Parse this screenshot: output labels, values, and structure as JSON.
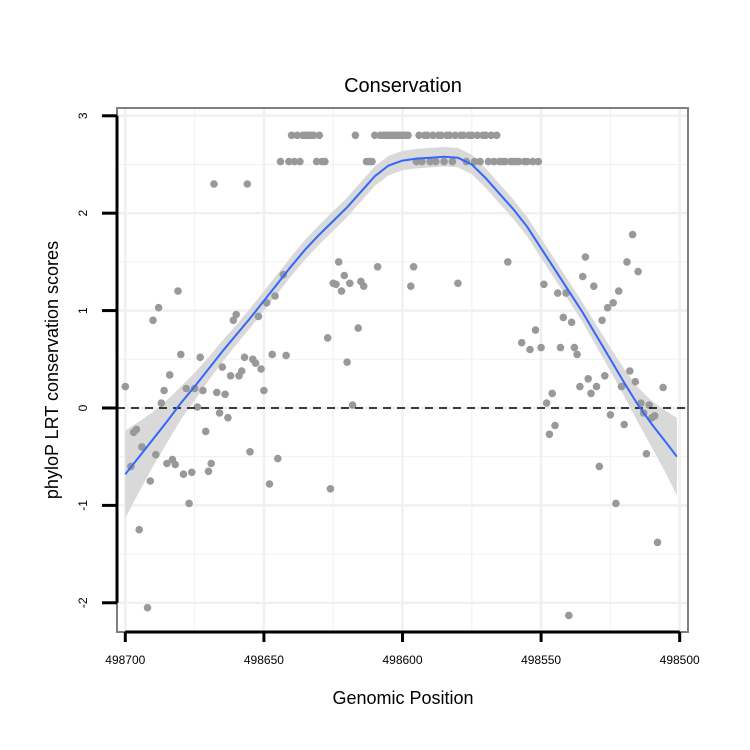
{
  "chart_data": {
    "type": "scatter",
    "title": "Conservation",
    "xlabel": "Genomic Position",
    "ylabel": "phyloP LRT conservation scores",
    "xlim": [
      498703,
      498497
    ],
    "x_reversed": true,
    "ylim": [
      -2.3,
      3.08
    ],
    "x_ticks": [
      498700,
      498650,
      498600,
      498550,
      498500
    ],
    "x_tick_labels": [
      "498700",
      "498650",
      "498600",
      "498550",
      "498500"
    ],
    "y_ticks": [
      -2,
      -1,
      0,
      1,
      2,
      3
    ],
    "y_tick_labels": [
      "-2",
      "-1",
      "0",
      "1",
      "2",
      "3"
    ],
    "grid": true,
    "reference_line": {
      "y": 0,
      "style": "dashed",
      "color": "#000000"
    },
    "colors": {
      "points": "#999999",
      "smooth_line": "#3366ff",
      "ribbon": "#d9d9d9",
      "grid": "#f0f0f0",
      "panel_border": "#7f7f7f"
    },
    "points": [
      {
        "x": 498700,
        "y": 0.22
      },
      {
        "x": 498698,
        "y": -0.6
      },
      {
        "x": 498697,
        "y": -0.25
      },
      {
        "x": 498696,
        "y": -0.22
      },
      {
        "x": 498695,
        "y": -1.25
      },
      {
        "x": 498694,
        "y": -0.4
      },
      {
        "x": 498692,
        "y": -2.05
      },
      {
        "x": 498691,
        "y": -0.75
      },
      {
        "x": 498690,
        "y": 0.9
      },
      {
        "x": 498689,
        "y": -0.48
      },
      {
        "x": 498688,
        "y": 1.03
      },
      {
        "x": 498687,
        "y": 0.05
      },
      {
        "x": 498686,
        "y": 0.18
      },
      {
        "x": 498685,
        "y": -0.57
      },
      {
        "x": 498684,
        "y": 0.34
      },
      {
        "x": 498683,
        "y": -0.53
      },
      {
        "x": 498682,
        "y": -0.58
      },
      {
        "x": 498681,
        "y": 1.2
      },
      {
        "x": 498680,
        "y": 0.55
      },
      {
        "x": 498679,
        "y": -0.68
      },
      {
        "x": 498678,
        "y": 0.2
      },
      {
        "x": 498677,
        "y": -0.98
      },
      {
        "x": 498676,
        "y": -0.66
      },
      {
        "x": 498675,
        "y": 0.2
      },
      {
        "x": 498674,
        "y": 0.01
      },
      {
        "x": 498673,
        "y": 0.52
      },
      {
        "x": 498672,
        "y": 0.18
      },
      {
        "x": 498671,
        "y": -0.24
      },
      {
        "x": 498670,
        "y": -0.65
      },
      {
        "x": 498669,
        "y": -0.57
      },
      {
        "x": 498668,
        "y": 2.3
      },
      {
        "x": 498667,
        "y": 0.16
      },
      {
        "x": 498666,
        "y": -0.05
      },
      {
        "x": 498665,
        "y": 0.42
      },
      {
        "x": 498664,
        "y": 0.14
      },
      {
        "x": 498663,
        "y": -0.1
      },
      {
        "x": 498662,
        "y": 0.33
      },
      {
        "x": 498661,
        "y": 0.9
      },
      {
        "x": 498660,
        "y": 0.96
      },
      {
        "x": 498659,
        "y": 0.33
      },
      {
        "x": 498658,
        "y": 0.38
      },
      {
        "x": 498657,
        "y": 0.52
      },
      {
        "x": 498656,
        "y": 2.3
      },
      {
        "x": 498655,
        "y": -0.45
      },
      {
        "x": 498654,
        "y": 0.5
      },
      {
        "x": 498653,
        "y": 0.46
      },
      {
        "x": 498652,
        "y": 0.94
      },
      {
        "x": 498651,
        "y": 0.4
      },
      {
        "x": 498650,
        "y": 0.18
      },
      {
        "x": 498649,
        "y": 1.08
      },
      {
        "x": 498648,
        "y": -0.78
      },
      {
        "x": 498647,
        "y": 0.55
      },
      {
        "x": 498646,
        "y": 1.15
      },
      {
        "x": 498645,
        "y": -0.52
      },
      {
        "x": 498644,
        "y": 2.53
      },
      {
        "x": 498643,
        "y": 1.37
      },
      {
        "x": 498642,
        "y": 0.54
      },
      {
        "x": 498641,
        "y": 2.53
      },
      {
        "x": 498640,
        "y": 2.8
      },
      {
        "x": 498639,
        "y": 2.53
      },
      {
        "x": 498638,
        "y": 2.8
      },
      {
        "x": 498637,
        "y": 2.53
      },
      {
        "x": 498636,
        "y": 2.8
      },
      {
        "x": 498635,
        "y": 2.8
      },
      {
        "x": 498634,
        "y": 2.8
      },
      {
        "x": 498633,
        "y": 2.8
      },
      {
        "x": 498632,
        "y": 2.8
      },
      {
        "x": 498631,
        "y": 2.53
      },
      {
        "x": 498630,
        "y": 2.8
      },
      {
        "x": 498629,
        "y": 2.53
      },
      {
        "x": 498628,
        "y": 2.53
      },
      {
        "x": 498627,
        "y": 0.72
      },
      {
        "x": 498626,
        "y": -0.83
      },
      {
        "x": 498625,
        "y": 1.28
      },
      {
        "x": 498624,
        "y": 1.27
      },
      {
        "x": 498623,
        "y": 1.5
      },
      {
        "x": 498622,
        "y": 1.2
      },
      {
        "x": 498621,
        "y": 1.36
      },
      {
        "x": 498620,
        "y": 0.47
      },
      {
        "x": 498619,
        "y": 1.28
      },
      {
        "x": 498618,
        "y": 0.03
      },
      {
        "x": 498617,
        "y": 2.8
      },
      {
        "x": 498616,
        "y": 0.82
      },
      {
        "x": 498615,
        "y": 1.3
      },
      {
        "x": 498614,
        "y": 1.25
      },
      {
        "x": 498613,
        "y": 2.53
      },
      {
        "x": 498612,
        "y": 2.53
      },
      {
        "x": 498611,
        "y": 2.53
      },
      {
        "x": 498610,
        "y": 2.8
      },
      {
        "x": 498609,
        "y": 1.45
      },
      {
        "x": 498608,
        "y": 2.8
      },
      {
        "x": 498607,
        "y": 2.8
      },
      {
        "x": 498606,
        "y": 2.8
      },
      {
        "x": 498605,
        "y": 2.8
      },
      {
        "x": 498604,
        "y": 2.8
      },
      {
        "x": 498603,
        "y": 2.8
      },
      {
        "x": 498602,
        "y": 2.8
      },
      {
        "x": 498601,
        "y": 2.8
      },
      {
        "x": 498600,
        "y": 2.8
      },
      {
        "x": 498599,
        "y": 2.8
      },
      {
        "x": 498598,
        "y": 2.8
      },
      {
        "x": 498597,
        "y": 1.25
      },
      {
        "x": 498596,
        "y": 1.45
      },
      {
        "x": 498595,
        "y": 2.53
      },
      {
        "x": 498594,
        "y": 2.8
      },
      {
        "x": 498593,
        "y": 2.53
      },
      {
        "x": 498592,
        "y": 2.8
      },
      {
        "x": 498591,
        "y": 2.8
      },
      {
        "x": 498590,
        "y": 2.53
      },
      {
        "x": 498589,
        "y": 2.8
      },
      {
        "x": 498588,
        "y": 2.53
      },
      {
        "x": 498587,
        "y": 2.8
      },
      {
        "x": 498586,
        "y": 2.8
      },
      {
        "x": 498585,
        "y": 2.53
      },
      {
        "x": 498584,
        "y": 2.8
      },
      {
        "x": 498583,
        "y": 2.8
      },
      {
        "x": 498582,
        "y": 2.53
      },
      {
        "x": 498581,
        "y": 2.8
      },
      {
        "x": 498580,
        "y": 1.28
      },
      {
        "x": 498579,
        "y": 2.8
      },
      {
        "x": 498578,
        "y": 2.8
      },
      {
        "x": 498577,
        "y": 2.53
      },
      {
        "x": 498576,
        "y": 2.8
      },
      {
        "x": 498575,
        "y": 2.8
      },
      {
        "x": 498574,
        "y": 2.53
      },
      {
        "x": 498573,
        "y": 2.8
      },
      {
        "x": 498572,
        "y": 2.53
      },
      {
        "x": 498571,
        "y": 2.8
      },
      {
        "x": 498570,
        "y": 2.8
      },
      {
        "x": 498569,
        "y": 2.53
      },
      {
        "x": 498568,
        "y": 2.8
      },
      {
        "x": 498567,
        "y": 2.53
      },
      {
        "x": 498566,
        "y": 2.8
      },
      {
        "x": 498565,
        "y": 2.53
      },
      {
        "x": 498564,
        "y": 2.53
      },
      {
        "x": 498563,
        "y": 2.53
      },
      {
        "x": 498562,
        "y": 1.5
      },
      {
        "x": 498561,
        "y": 2.53
      },
      {
        "x": 498560,
        "y": 2.53
      },
      {
        "x": 498559,
        "y": 2.53
      },
      {
        "x": 498558,
        "y": 2.53
      },
      {
        "x": 498557,
        "y": 0.67
      },
      {
        "x": 498556,
        "y": 2.53
      },
      {
        "x": 498555,
        "y": 2.53
      },
      {
        "x": 498554,
        "y": 0.6
      },
      {
        "x": 498553,
        "y": 2.53
      },
      {
        "x": 498552,
        "y": 0.8
      },
      {
        "x": 498551,
        "y": 2.53
      },
      {
        "x": 498550,
        "y": 0.62
      },
      {
        "x": 498549,
        "y": 1.27
      },
      {
        "x": 498548,
        "y": 0.05
      },
      {
        "x": 498547,
        "y": -0.27
      },
      {
        "x": 498546,
        "y": 0.15
      },
      {
        "x": 498545,
        "y": -0.18
      },
      {
        "x": 498544,
        "y": 1.18
      },
      {
        "x": 498543,
        "y": 0.62
      },
      {
        "x": 498542,
        "y": 0.93
      },
      {
        "x": 498541,
        "y": 1.18
      },
      {
        "x": 498540,
        "y": -2.13
      },
      {
        "x": 498539,
        "y": 0.88
      },
      {
        "x": 498538,
        "y": 0.62
      },
      {
        "x": 498537,
        "y": 0.55
      },
      {
        "x": 498536,
        "y": 0.22
      },
      {
        "x": 498535,
        "y": 1.35
      },
      {
        "x": 498534,
        "y": 1.55
      },
      {
        "x": 498533,
        "y": 0.3
      },
      {
        "x": 498532,
        "y": 0.15
      },
      {
        "x": 498531,
        "y": 1.25
      },
      {
        "x": 498530,
        "y": 0.22
      },
      {
        "x": 498529,
        "y": -0.6
      },
      {
        "x": 498528,
        "y": 0.9
      },
      {
        "x": 498527,
        "y": 0.33
      },
      {
        "x": 498526,
        "y": 1.03
      },
      {
        "x": 498525,
        "y": -0.07
      },
      {
        "x": 498524,
        "y": 1.08
      },
      {
        "x": 498523,
        "y": -0.98
      },
      {
        "x": 498522,
        "y": 1.2
      },
      {
        "x": 498521,
        "y": 0.22
      },
      {
        "x": 498520,
        "y": -0.17
      },
      {
        "x": 498519,
        "y": 1.5
      },
      {
        "x": 498518,
        "y": 0.38
      },
      {
        "x": 498517,
        "y": 1.78
      },
      {
        "x": 498516,
        "y": 0.27
      },
      {
        "x": 498515,
        "y": 1.4
      },
      {
        "x": 498514,
        "y": 0.05
      },
      {
        "x": 498513,
        "y": -0.05
      },
      {
        "x": 498512,
        "y": -0.47
      },
      {
        "x": 498511,
        "y": 0.03
      },
      {
        "x": 498510,
        "y": -0.1
      },
      {
        "x": 498509,
        "y": -0.08
      },
      {
        "x": 498508,
        "y": -1.38
      },
      {
        "x": 498506,
        "y": 0.21
      }
    ],
    "smooth": {
      "x": [
        498700,
        498695,
        498690,
        498685,
        498680,
        498675,
        498670,
        498665,
        498660,
        498655,
        498650,
        498645,
        498640,
        498635,
        498630,
        498625,
        498620,
        498615,
        498610,
        498605,
        498600,
        498595,
        498590,
        498585,
        498580,
        498575,
        498570,
        498565,
        498560,
        498555,
        498550,
        498545,
        498540,
        498535,
        498530,
        498525,
        498520,
        498515,
        498510,
        498505,
        498501
      ],
      "y": [
        -0.68,
        -0.5,
        -0.32,
        -0.14,
        0.05,
        0.22,
        0.4,
        0.58,
        0.75,
        0.92,
        1.1,
        1.28,
        1.46,
        1.63,
        1.78,
        1.92,
        2.06,
        2.22,
        2.38,
        2.49,
        2.54,
        2.56,
        2.57,
        2.58,
        2.57,
        2.5,
        2.36,
        2.2,
        2.04,
        1.86,
        1.64,
        1.42,
        1.2,
        0.98,
        0.74,
        0.5,
        0.26,
        0.03,
        -0.17,
        -0.35,
        -0.5
      ],
      "se": [
        0.45,
        0.36,
        0.28,
        0.22,
        0.17,
        0.14,
        0.12,
        0.11,
        0.1,
        0.1,
        0.1,
        0.1,
        0.1,
        0.1,
        0.1,
        0.1,
        0.1,
        0.1,
        0.1,
        0.1,
        0.1,
        0.1,
        0.1,
        0.1,
        0.1,
        0.1,
        0.1,
        0.1,
        0.1,
        0.1,
        0.1,
        0.1,
        0.1,
        0.1,
        0.11,
        0.12,
        0.14,
        0.18,
        0.24,
        0.32,
        0.4
      ]
    }
  }
}
